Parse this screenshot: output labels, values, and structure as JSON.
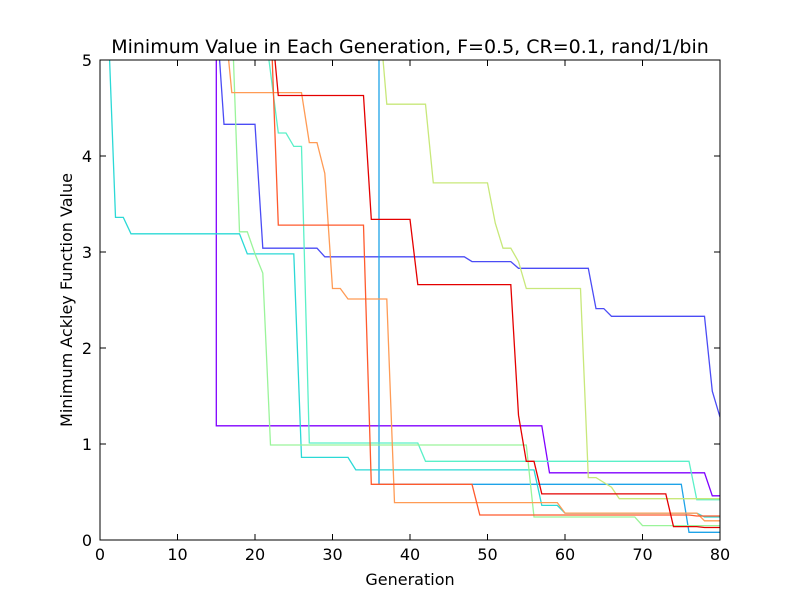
{
  "chart_data": {
    "type": "line",
    "title": "Minimum Value in Each Generation, F=0.5, CR=0.1, rand/1/bin",
    "xlabel": "Generation",
    "ylabel": "Minimum Ackley Function Value",
    "xlim": [
      0,
      80
    ],
    "ylim": [
      0,
      5
    ],
    "xticks": [
      0,
      10,
      20,
      30,
      40,
      50,
      60,
      70,
      80
    ],
    "yticks": [
      0,
      1,
      2,
      3,
      4,
      5
    ],
    "grid": false,
    "legend": "none",
    "series": [
      {
        "name": "run-1",
        "color": "#8000ff",
        "x": [
          14,
          15,
          15,
          57,
          58,
          78,
          79,
          80
        ],
        "y": [
          5.5,
          5.5,
          1.19,
          1.19,
          0.7,
          0.7,
          0.46,
          0.46
        ]
      },
      {
        "name": "run-2",
        "color": "#4b4cf5",
        "x": [
          15,
          16,
          20,
          21,
          28,
          29,
          47,
          48,
          53,
          54,
          63,
          64,
          65,
          66,
          78,
          79,
          80
        ],
        "y": [
          5.5,
          4.33,
          4.33,
          3.04,
          3.04,
          2.95,
          2.95,
          2.9,
          2.9,
          2.83,
          2.83,
          2.41,
          2.41,
          2.33,
          2.33,
          1.55,
          1.28
        ]
      },
      {
        "name": "run-3",
        "color": "#1ea3e8",
        "x": [
          35,
          36,
          36,
          75,
          76,
          80
        ],
        "y": [
          5.5,
          5.5,
          0.58,
          0.58,
          0.08,
          0.08
        ]
      },
      {
        "name": "run-4",
        "color": "#2bd9d6",
        "x": [
          1,
          2,
          3,
          4,
          18,
          19,
          25,
          26,
          32,
          33,
          56,
          57,
          59,
          60,
          77,
          78,
          80
        ],
        "y": [
          5.5,
          3.36,
          3.36,
          3.19,
          3.19,
          2.98,
          2.98,
          0.86,
          0.86,
          0.73,
          0.73,
          0.36,
          0.36,
          0.28,
          0.28,
          0.24,
          0.24
        ]
      },
      {
        "name": "run-5",
        "color": "#5af0c8",
        "x": [
          21,
          23,
          24,
          25,
          26,
          27,
          27,
          41,
          42,
          76,
          77,
          80
        ],
        "y": [
          5.5,
          4.24,
          4.24,
          4.1,
          4.1,
          1.01,
          1.01,
          1.01,
          0.82,
          0.82,
          0.42,
          0.42
        ]
      },
      {
        "name": "run-6",
        "color": "#9af49a",
        "x": [
          17,
          18,
          19,
          20,
          21,
          22,
          55,
          56,
          69,
          70,
          80
        ],
        "y": [
          5.5,
          3.21,
          3.21,
          2.98,
          2.78,
          0.99,
          0.99,
          0.24,
          0.24,
          0.15,
          0.15
        ]
      },
      {
        "name": "run-7",
        "color": "#c8e87a",
        "x": [
          36,
          37,
          42,
          43,
          50,
          51,
          52,
          53,
          54,
          55,
          62,
          63,
          64,
          66,
          67,
          80
        ],
        "y": [
          5.5,
          4.54,
          4.54,
          3.72,
          3.72,
          3.3,
          3.04,
          3.04,
          2.9,
          2.62,
          2.62,
          0.65,
          0.65,
          0.55,
          0.43,
          0.43
        ]
      },
      {
        "name": "run-8",
        "color": "#ff9b55",
        "x": [
          16,
          17,
          26,
          27,
          28,
          29,
          30,
          31,
          32,
          37,
          38,
          38,
          59,
          60,
          77,
          78,
          80
        ],
        "y": [
          5.5,
          4.66,
          4.66,
          4.14,
          4.14,
          3.82,
          2.62,
          2.62,
          2.51,
          2.51,
          0.39,
          0.39,
          0.39,
          0.28,
          0.28,
          0.2,
          0.2
        ]
      },
      {
        "name": "run-9",
        "color": "#ff5a2d",
        "x": [
          22,
          23,
          34,
          35,
          48,
          49,
          76,
          77,
          80
        ],
        "y": [
          5.5,
          3.28,
          3.28,
          0.58,
          0.58,
          0.26,
          0.26,
          0.25,
          0.25
        ]
      },
      {
        "name": "run-10",
        "color": "#e40000",
        "x": [
          22,
          23,
          34,
          35,
          40,
          41,
          53,
          54,
          55,
          56,
          57,
          73,
          74,
          77,
          78,
          80
        ],
        "y": [
          5.5,
          4.63,
          4.63,
          3.34,
          3.34,
          2.66,
          2.66,
          1.3,
          0.82,
          0.82,
          0.48,
          0.48,
          0.14,
          0.14,
          0.13,
          0.13
        ]
      }
    ]
  }
}
